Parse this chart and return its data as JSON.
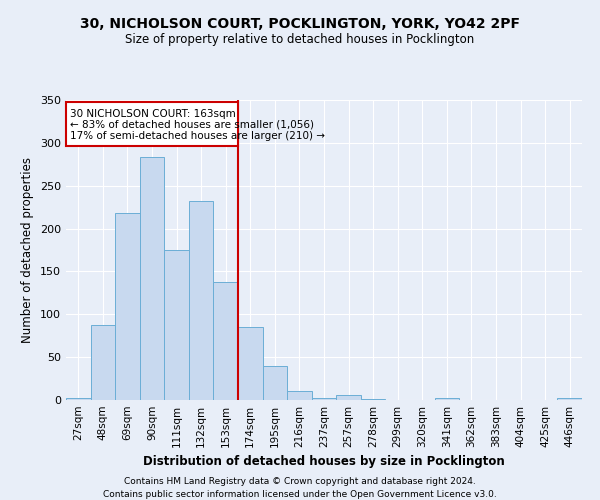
{
  "title1": "30, NICHOLSON COURT, POCKLINGTON, YORK, YO42 2PF",
  "title2": "Size of property relative to detached houses in Pocklington",
  "xlabel": "Distribution of detached houses by size in Pocklington",
  "ylabel": "Number of detached properties",
  "categories": [
    "27sqm",
    "48sqm",
    "69sqm",
    "90sqm",
    "111sqm",
    "132sqm",
    "153sqm",
    "174sqm",
    "195sqm",
    "216sqm",
    "237sqm",
    "257sqm",
    "278sqm",
    "299sqm",
    "320sqm",
    "341sqm",
    "362sqm",
    "383sqm",
    "404sqm",
    "425sqm",
    "446sqm"
  ],
  "values": [
    2,
    87,
    218,
    284,
    175,
    232,
    138,
    85,
    40,
    10,
    2,
    6,
    1,
    0,
    0,
    2,
    0,
    0,
    0,
    0,
    2
  ],
  "bar_color": "#c8d9ef",
  "bar_edge_color": "#6baed6",
  "annotation_text_line1": "30 NICHOLSON COURT: 163sqm",
  "annotation_text_line2": "← 83% of detached houses are smaller (1,056)",
  "annotation_text_line3": "17% of semi-detached houses are larger (210) →",
  "box_color": "#cc0000",
  "vline_color": "#cc0000",
  "ylim": [
    0,
    350
  ],
  "yticks": [
    0,
    50,
    100,
    150,
    200,
    250,
    300,
    350
  ],
  "bg_color": "#e8eef8",
  "grid_color": "#ffffff",
  "footer1": "Contains HM Land Registry data © Crown copyright and database right 2024.",
  "footer2": "Contains public sector information licensed under the Open Government Licence v3.0."
}
